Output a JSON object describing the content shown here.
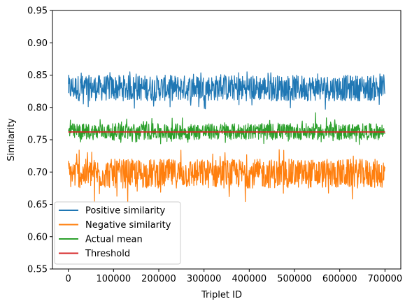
{
  "chart_data": {
    "type": "line",
    "title": "",
    "xlabel": "Triplet ID",
    "ylabel": "Similarity",
    "xlim": [
      -35000,
      735000
    ],
    "ylim": [
      0.55,
      0.95
    ],
    "xticks": [
      0,
      100000,
      200000,
      300000,
      400000,
      500000,
      600000,
      700000
    ],
    "xtick_labels": [
      "0",
      "100000",
      "200000",
      "300000",
      "400000",
      "500000",
      "600000",
      "700000"
    ],
    "yticks": [
      0.55,
      0.6,
      0.65,
      0.7,
      0.75,
      0.8,
      0.85,
      0.9,
      0.95
    ],
    "ytick_labels": [
      "0.55",
      "0.60",
      "0.65",
      "0.70",
      "0.75",
      "0.80",
      "0.85",
      "0.90",
      "0.95"
    ],
    "grid": false,
    "legend_position": "lower-left",
    "x_range": [
      0,
      700000
    ],
    "series": [
      {
        "name": "Positive similarity",
        "color": "#1f77b4",
        "kind": "noisy-band",
        "center": 0.83,
        "typical_low": 0.81,
        "typical_high": 0.85,
        "min": 0.797,
        "max": 0.856
      },
      {
        "name": "Negative similarity",
        "color": "#ff7f0e",
        "kind": "noisy-band",
        "center": 0.697,
        "typical_low": 0.675,
        "typical_high": 0.72,
        "min": 0.652,
        "max": 0.736
      },
      {
        "name": "Actual mean",
        "color": "#2ca02c",
        "kind": "noisy-band",
        "center": 0.762,
        "typical_low": 0.75,
        "typical_high": 0.775,
        "min": 0.742,
        "max": 0.792
      },
      {
        "name": "Threshold",
        "color": "#d62728",
        "kind": "constant",
        "value": 0.762
      }
    ]
  }
}
